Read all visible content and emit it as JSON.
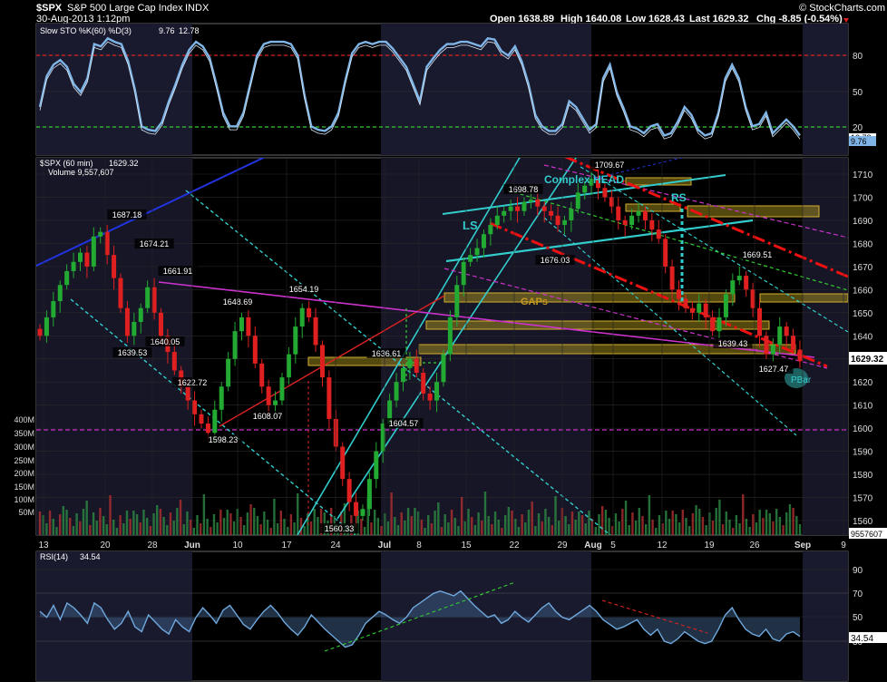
{
  "header": {
    "symbol": "$SPX",
    "name": "S&P 500 Large Cap Index",
    "exchange": "INDX",
    "datetime": "30-Aug-2013 1:12pm",
    "open": "Open 1638.89",
    "high": "High 1640.08",
    "low": "Low 1628.43",
    "last": "Last 1629.32",
    "chg": "Chg -8.85 (-0.54%)",
    "brand": "© StockCharts.com",
    "colors": {
      "up": "#22aa33",
      "down": "#e02020",
      "accent": "#3fa0ff"
    }
  },
  "chart_data": [
    {
      "type": "line",
      "panel": "stochastic",
      "legend": "Slow STO %K(60) %D(3) 9.76, 12.78",
      "legend_name": "Slow STO %K(60) %D(3)",
      "legend_k": "9.76",
      "legend_d": "12.78",
      "ylim": [
        0,
        100
      ],
      "yticks": [
        "80",
        "50",
        "20"
      ],
      "lines": {
        "overbought": 80,
        "oversold": 20
      },
      "last_labels": [
        "12.78",
        "9.76"
      ],
      "series": [
        {
          "name": "%K",
          "values": [
            35,
            62,
            72,
            76,
            70,
            55,
            48,
            60,
            90,
            88,
            95,
            92,
            90,
            75,
            50,
            18,
            15,
            14,
            22,
            40,
            55,
            72,
            85,
            92,
            88,
            78,
            55,
            30,
            18,
            18,
            30,
            55,
            80,
            90,
            92,
            92,
            92,
            90,
            80,
            45,
            18,
            15,
            14,
            18,
            30,
            58,
            82,
            90,
            92,
            90,
            92,
            92,
            86,
            78,
            70,
            55,
            40,
            70,
            78,
            85,
            90,
            90,
            92,
            92,
            90,
            88,
            95,
            94,
            84,
            80,
            88,
            75,
            55,
            28,
            18,
            14,
            14,
            20,
            40,
            35,
            25,
            15,
            20,
            60,
            72,
            48,
            34,
            18,
            16,
            12,
            18,
            20,
            10,
            12,
            22,
            35,
            28,
            15,
            10,
            12,
            30,
            60,
            72,
            60,
            35,
            18,
            20,
            30,
            12,
            18,
            24,
            18,
            10
          ]
        }
      ]
    },
    {
      "type": "candlestick",
      "panel": "price",
      "legend": "$SPX (60 min) 1629.32",
      "legend_name": "$SPX (60 min)",
      "legend_value": "1629.32",
      "volume_legend": "Volume 9,557,607",
      "ylim": [
        1555,
        1720
      ],
      "yticks": [
        1560,
        1570,
        1580,
        1590,
        1600,
        1610,
        1620,
        1630,
        1640,
        1650,
        1660,
        1670,
        1680,
        1690,
        1700,
        1710
      ],
      "last_price": "1629.32",
      "x_ticks": [
        "13",
        "20",
        "28",
        "Jun",
        "10",
        "17",
        "24",
        "Jul",
        "8",
        "15",
        "22",
        "29",
        "Aug",
        "5",
        "12",
        "19",
        "26",
        "Sep",
        "9"
      ],
      "closes": [
        1640,
        1648,
        1655,
        1662,
        1668,
        1672,
        1676,
        1670,
        1683,
        1685,
        1675,
        1665,
        1652,
        1640,
        1646,
        1652,
        1661,
        1650,
        1640,
        1633,
        1625,
        1618,
        1612,
        1606,
        1602,
        1598,
        1608,
        1618,
        1630,
        1642,
        1648,
        1640,
        1628,
        1618,
        1610,
        1612,
        1622,
        1632,
        1644,
        1652,
        1648,
        1636,
        1622,
        1604,
        1592,
        1578,
        1568,
        1562,
        1565,
        1578,
        1590,
        1602,
        1612,
        1620,
        1626,
        1630,
        1624,
        1615,
        1612,
        1620,
        1632,
        1648,
        1662,
        1672,
        1675,
        1678,
        1684,
        1688,
        1692,
        1694,
        1696,
        1694,
        1698,
        1699,
        1696,
        1694,
        1692,
        1688,
        1690,
        1695,
        1702,
        1705,
        1708,
        1704,
        1700,
        1696,
        1690,
        1688,
        1692,
        1694,
        1690,
        1686,
        1682,
        1670,
        1660,
        1656,
        1652,
        1650,
        1654,
        1648,
        1642,
        1648,
        1658,
        1664,
        1666,
        1660,
        1652,
        1640,
        1632,
        1636,
        1644,
        1640,
        1634,
        1629
      ],
      "price_labels": [
        "1687.18",
        "1674.21",
        "1661.91",
        "1639.53",
        "1640.05",
        "1622.72",
        "1598.23",
        "1648.69",
        "1608.07",
        "1654.19",
        "1560.33",
        "1636.61",
        "1604.57",
        "1698.78",
        "1676.03",
        "1709.67",
        "1669.51",
        "1639.43",
        "1627.47"
      ],
      "annotations": [
        "Complex HEAD",
        "LS",
        "RS",
        "GAPs",
        "PBar"
      ],
      "volume_scale": [
        "400M",
        "350M",
        "300M",
        "250M",
        "200M",
        "150M",
        "100M",
        "50M"
      ],
      "volume_last": "9557607"
    },
    {
      "type": "line",
      "panel": "rsi",
      "legend": "RSI(14) 34.54",
      "legend_name": "RSI(14)",
      "legend_value": "34.54",
      "ylim": [
        15,
        95
      ],
      "yticks": [
        "90",
        "70",
        "50",
        "30"
      ],
      "lines": {
        "upper": 70,
        "lower": 30
      },
      "last_label": "34.54",
      "series": [
        {
          "name": "RSI(14)",
          "values": [
            55,
            50,
            60,
            48,
            62,
            58,
            52,
            45,
            62,
            58,
            48,
            40,
            45,
            55,
            42,
            38,
            52,
            46,
            40,
            36,
            48,
            42,
            38,
            50,
            58,
            52,
            45,
            56,
            60,
            52,
            44,
            40,
            48,
            55,
            60,
            54,
            46,
            40,
            35,
            42,
            52,
            46,
            40,
            35,
            30,
            25,
            27,
            35,
            45,
            50,
            55,
            52,
            48,
            45,
            50,
            58,
            62,
            66,
            70,
            72,
            70,
            68,
            72,
            66,
            60,
            55,
            50,
            52,
            45,
            48,
            55,
            50,
            46,
            52,
            58,
            62,
            55,
            50,
            48,
            52,
            56,
            60,
            55,
            48,
            44,
            40,
            42,
            45,
            48,
            40,
            35,
            40,
            30,
            28,
            32,
            38,
            34,
            30,
            28,
            30,
            40,
            52,
            58,
            48,
            40,
            36,
            34,
            40,
            32,
            30,
            36,
            38,
            34
          ]
        }
      ]
    }
  ]
}
